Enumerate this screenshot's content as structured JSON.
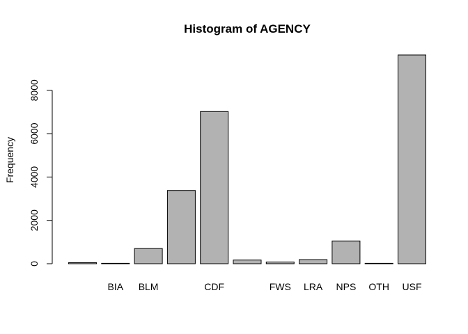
{
  "chart_data": {
    "type": "bar",
    "title": "Histogram of AGENCY",
    "xlabel": "",
    "ylabel": "Frequency",
    "categories": [
      "",
      "BIA",
      "BLM",
      "",
      "CDF",
      "",
      "FWS",
      "LRA",
      "NPS",
      "OTH",
      "USF"
    ],
    "values": [
      50,
      20,
      700,
      3380,
      7020,
      170,
      80,
      190,
      1050,
      20,
      9630
    ],
    "ylim": [
      0,
      9630
    ],
    "yticks": [
      0,
      2000,
      4000,
      6000,
      8000
    ],
    "grid": false,
    "legend": "none",
    "bar_color": "#b2b2b2"
  }
}
